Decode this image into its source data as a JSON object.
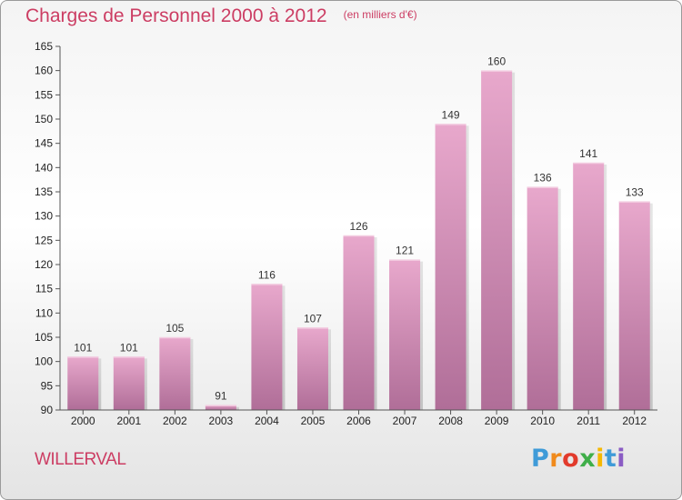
{
  "header": {
    "title": "Charges de Personnel 2000 à 2012",
    "subtitle": "(en milliers d'€)"
  },
  "footer": {
    "location": "WILLERVAL",
    "logo_letters": [
      "P",
      "r",
      "o",
      "x",
      "i",
      "t",
      "i"
    ]
  },
  "colors": {
    "title": "#cc3d63",
    "bar_top": "#e8a8cc",
    "bar_bottom": "#b06e98",
    "axis": "#555555"
  },
  "chart_data": {
    "type": "bar",
    "categories": [
      "2000",
      "2001",
      "2002",
      "2003",
      "2004",
      "2005",
      "2006",
      "2007",
      "2008",
      "2009",
      "2010",
      "2011",
      "2012"
    ],
    "values": [
      101,
      101,
      105,
      91,
      116,
      107,
      126,
      121,
      149,
      160,
      136,
      141,
      133
    ],
    "title": "Charges de Personnel 2000 à 2012",
    "subtitle": "(en milliers d'€)",
    "ylim": [
      90,
      165
    ],
    "yticks": [
      90,
      95,
      100,
      105,
      110,
      115,
      120,
      125,
      130,
      135,
      140,
      145,
      150,
      155,
      160,
      165
    ],
    "grid": false,
    "data_labels": true
  }
}
